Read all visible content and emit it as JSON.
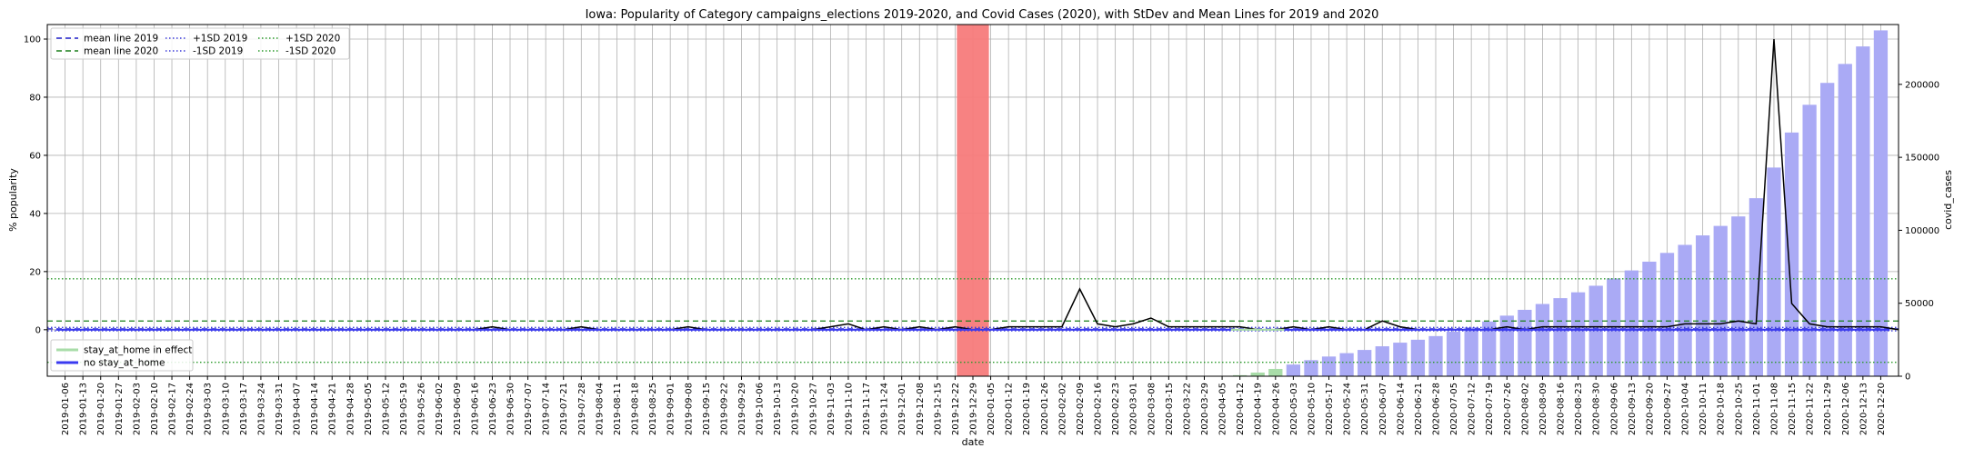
{
  "chart_data": {
    "type": "bar",
    "title": "Iowa: Popularity of Category campaigns_elections 2019-2020, and Covid Cases (2020), with StDev and Mean Lines for 2019 and 2020",
    "xlabel": "date",
    "ylabel": "% popularity",
    "ylabel_right": "covid_cases",
    "ylim": [
      -16,
      105
    ],
    "ylim_right": [
      0,
      241000
    ],
    "yticks": [
      0,
      20,
      40,
      60,
      80,
      100
    ],
    "yticks_right": [
      0,
      50000,
      100000,
      150000,
      200000
    ],
    "grid": true,
    "categories": [
      "2019-01-06",
      "2019-01-13",
      "2019-01-20",
      "2019-01-27",
      "2019-02-03",
      "2019-02-10",
      "2019-02-17",
      "2019-02-24",
      "2019-03-03",
      "2019-03-10",
      "2019-03-17",
      "2019-03-24",
      "2019-03-31",
      "2019-04-07",
      "2019-04-14",
      "2019-04-21",
      "2019-04-28",
      "2019-05-05",
      "2019-05-12",
      "2019-05-19",
      "2019-05-26",
      "2019-06-02",
      "2019-06-09",
      "2019-06-16",
      "2019-06-23",
      "2019-06-30",
      "2019-07-07",
      "2019-07-14",
      "2019-07-21",
      "2019-07-28",
      "2019-08-04",
      "2019-08-11",
      "2019-08-18",
      "2019-08-25",
      "2019-09-01",
      "2019-09-08",
      "2019-09-15",
      "2019-09-22",
      "2019-09-29",
      "2019-10-06",
      "2019-10-13",
      "2019-10-20",
      "2019-10-27",
      "2019-11-03",
      "2019-11-10",
      "2019-11-17",
      "2019-11-24",
      "2019-12-01",
      "2019-12-08",
      "2019-12-15",
      "2019-12-22",
      "2019-12-29",
      "2020-01-05",
      "2020-01-12",
      "2020-01-19",
      "2020-01-26",
      "2020-02-02",
      "2020-02-09",
      "2020-02-16",
      "2020-02-23",
      "2020-03-01",
      "2020-03-08",
      "2020-03-15",
      "2020-03-22",
      "2020-03-29",
      "2020-04-05",
      "2020-04-12",
      "2020-04-19",
      "2020-04-26",
      "2020-05-03",
      "2020-05-10",
      "2020-05-17",
      "2020-05-24",
      "2020-05-31",
      "2020-06-07",
      "2020-06-14",
      "2020-06-21",
      "2020-06-28",
      "2020-07-05",
      "2020-07-12",
      "2020-07-19",
      "2020-07-26",
      "2020-08-02",
      "2020-08-09",
      "2020-08-16",
      "2020-08-23",
      "2020-08-30",
      "2020-09-06",
      "2020-09-13",
      "2020-09-20",
      "2020-09-27",
      "2020-10-04",
      "2020-10-11",
      "2020-10-18",
      "2020-10-25",
      "2020-11-01",
      "2020-11-08",
      "2020-11-15",
      "2020-11-22",
      "2020-11-29",
      "2020-12-06",
      "2020-12-13",
      "2020-12-20"
    ],
    "popularity": [
      0,
      0,
      0,
      0,
      0,
      0,
      0,
      0,
      0,
      0,
      0,
      0,
      0,
      0,
      0,
      0,
      0,
      0,
      0,
      0,
      0,
      0,
      0,
      0,
      1,
      0,
      0,
      0,
      0,
      1,
      0,
      0,
      0,
      0,
      0,
      1,
      0,
      0,
      0,
      0,
      0,
      0,
      0,
      1,
      2,
      0,
      1,
      0,
      1,
      0,
      1,
      0,
      0,
      1,
      1,
      1,
      1,
      14,
      2,
      1,
      2,
      4,
      1,
      1,
      1,
      1,
      1,
      0,
      0,
      1,
      0,
      1,
      0,
      0,
      3,
      1,
      0,
      0,
      0,
      0,
      0,
      1,
      0,
      1,
      1,
      1,
      1,
      1,
      1,
      1,
      1,
      2,
      2,
      2,
      3,
      2,
      100,
      9,
      2,
      1,
      1,
      1,
      1,
      0
    ],
    "covid_cases": [
      0,
      0,
      0,
      0,
      0,
      0,
      0,
      0,
      0,
      0,
      0,
      0,
      0,
      0,
      0,
      0,
      0,
      0,
      0,
      0,
      0,
      0,
      0,
      0,
      0,
      0,
      0,
      0,
      0,
      0,
      0,
      0,
      0,
      0,
      0,
      0,
      0,
      0,
      0,
      0,
      0,
      0,
      0,
      0,
      0,
      0,
      0,
      0,
      0,
      0,
      0,
      0,
      0,
      0,
      0,
      0,
      0,
      0,
      0,
      0,
      0,
      0,
      0,
      0,
      0,
      100,
      700,
      2500,
      5000,
      8000,
      11000,
      13500,
      15800,
      18000,
      20500,
      23000,
      25000,
      27500,
      30500,
      33500,
      37500,
      41500,
      45500,
      49500,
      53500,
      57500,
      62000,
      67000,
      72500,
      78500,
      84500,
      90000,
      96500,
      103000,
      109500,
      122000,
      143000,
      167000,
      186000,
      201000,
      214000,
      226000,
      237000
    ],
    "mean_2019": 0.3,
    "mean_2020": 3.0,
    "sd_2019": [
      0.8,
      -0.4
    ],
    "sd_2020": [
      17.5,
      -11.2
    ],
    "stay_at_home_weeks": [
      "2020-04-12",
      "2020-04-19",
      "2020-04-26"
    ],
    "highlight_week": "2019-12-29",
    "colors": {
      "popularity_line": "#000000",
      "mean_2019": "#1f1fc9",
      "mean_2020": "#1a7f1a",
      "sd_2019": "#3b3bd9",
      "sd_2020": "#2a9a2a",
      "bars_default": "#aaaaf5",
      "bars_stay_at_home": "#a8dca8",
      "highlight": "#f77b7b"
    },
    "legend_top": {
      "placement": "top-left",
      "entries": [
        "mean line 2019",
        "mean line 2020",
        "+1SD 2019",
        "-1SD 2019",
        "+1SD 2020",
        "-1SD 2020"
      ]
    },
    "legend_bottom": {
      "placement": "bottom-left",
      "entries": [
        "stay_at_home in effect",
        "no stay_at_home"
      ]
    }
  }
}
